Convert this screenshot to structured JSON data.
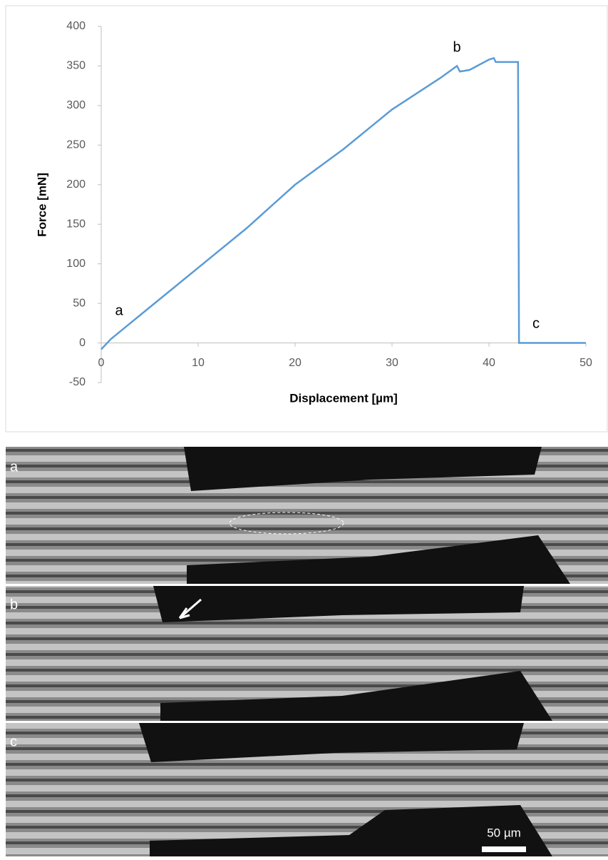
{
  "chart_data": {
    "type": "line",
    "x_label": "Displacement [µm]",
    "y_label": "Force [mN]",
    "x": [
      0,
      1,
      2,
      5,
      10,
      15,
      20,
      25,
      30,
      35,
      36.7,
      37,
      38,
      40,
      40.5,
      40.7,
      43,
      43.1,
      50
    ],
    "series": [
      {
        "color": "#5b9bd5",
        "values": [
          -8,
          5,
          15,
          45,
          95,
          145,
          200,
          245,
          295,
          335,
          350,
          343,
          345,
          358,
          360,
          355,
          355,
          0,
          0
        ]
      }
    ],
    "xlim": [
      0,
      50
    ],
    "xticks": [
      0,
      10,
      20,
      30,
      40,
      50
    ],
    "ylim": [
      -50,
      400
    ],
    "yticks": [
      -50,
      0,
      50,
      100,
      150,
      200,
      250,
      300,
      350,
      400
    ],
    "annotations": [
      {
        "text": "a"
      },
      {
        "text": "b"
      },
      {
        "text": "c"
      }
    ]
  },
  "micrographs": {
    "labels": [
      "a",
      "b",
      "c"
    ],
    "scale_bar": "50 µm"
  }
}
